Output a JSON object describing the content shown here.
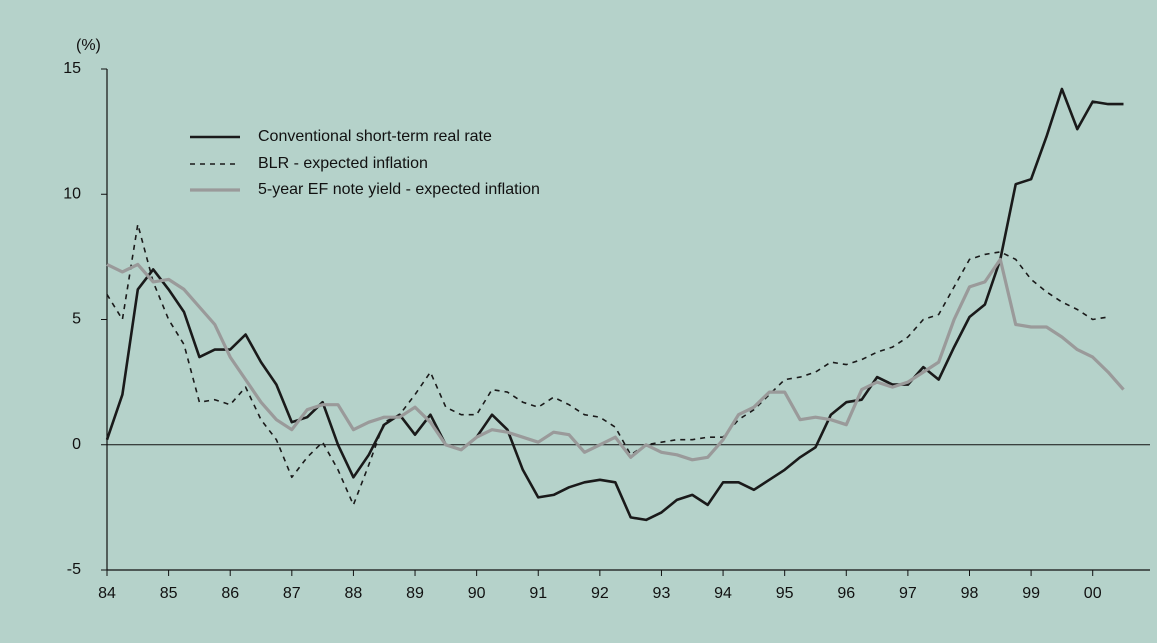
{
  "chart_data": {
    "type": "line",
    "y_label": "(%)",
    "x": [
      84,
      84.25,
      84.5,
      84.75,
      85,
      85.25,
      85.5,
      85.75,
      86,
      86.25,
      86.5,
      86.75,
      87,
      87.25,
      87.5,
      87.75,
      88,
      88.25,
      88.5,
      88.75,
      89,
      89.25,
      89.5,
      89.75,
      90,
      90.25,
      90.5,
      90.75,
      91,
      91.25,
      91.5,
      91.75,
      92,
      92.25,
      92.5,
      92.75,
      93,
      93.25,
      93.5,
      93.75,
      94,
      94.25,
      94.5,
      94.75,
      95,
      95.25,
      95.5,
      95.75,
      96,
      96.25,
      96.5,
      96.75,
      97,
      97.25,
      97.5,
      97.75,
      98,
      98.25,
      98.5,
      98.75,
      99,
      99.25,
      99.5,
      99.75,
      100,
      100.25,
      100.5
    ],
    "series": [
      {
        "name": "Conventional short-term real rate",
        "color": "#1a1a1a",
        "style": "solid",
        "values": [
          0.2,
          2.0,
          6.2,
          7.0,
          6.2,
          5.3,
          3.5,
          3.8,
          3.8,
          4.4,
          3.3,
          2.4,
          0.9,
          1.1,
          1.7,
          0.0,
          -1.3,
          -0.4,
          0.8,
          1.2,
          0.4,
          1.2,
          0.0,
          -0.2,
          0.3,
          1.2,
          0.6,
          -1.0,
          -2.1,
          -2.0,
          -1.7,
          -1.5,
          -1.4,
          -1.5,
          -2.9,
          -3.0,
          -2.7,
          -2.2,
          -2.0,
          -2.4,
          -1.5,
          -1.5,
          -1.8,
          -1.4,
          -1.0,
          -0.5,
          -0.1,
          1.2,
          1.7,
          1.8,
          2.7,
          2.4,
          2.4,
          3.1,
          2.6,
          3.9,
          5.1,
          5.6,
          7.4,
          10.4,
          10.6,
          12.3,
          14.2,
          12.6,
          13.7,
          13.6,
          13.6
        ]
      },
      {
        "name": "BLR - expected inflation",
        "color": "#1a1a1a",
        "style": "dashed",
        "values": [
          6.0,
          5.0,
          8.8,
          6.5,
          5.0,
          4.0,
          1.7,
          1.8,
          1.6,
          2.3,
          1.0,
          0.2,
          -1.3,
          -0.5,
          0.1,
          -1.0,
          -2.4,
          -0.8,
          0.9,
          1.2,
          2.0,
          2.9,
          1.5,
          1.2,
          1.2,
          2.2,
          2.1,
          1.7,
          1.5,
          1.9,
          1.6,
          1.2,
          1.1,
          0.7,
          -0.4,
          0.0,
          0.1,
          0.2,
          0.2,
          0.3,
          0.3,
          1.0,
          1.4,
          2.0,
          2.6,
          2.7,
          2.9,
          3.3,
          3.2,
          3.4,
          3.7,
          3.9,
          4.3,
          5.0,
          5.2,
          6.3,
          7.4,
          7.6,
          7.7,
          7.4,
          6.6,
          6.1,
          5.7,
          5.4,
          5.0,
          5.1,
          null
        ]
      },
      {
        "name": "5-year EF note yield - expected inflation",
        "color": "#9a9a9a",
        "style": "solid",
        "values": [
          7.2,
          6.9,
          7.2,
          6.5,
          6.6,
          6.2,
          5.5,
          4.8,
          3.5,
          2.6,
          1.7,
          1.0,
          0.6,
          1.4,
          1.6,
          1.6,
          0.6,
          0.9,
          1.1,
          1.1,
          1.5,
          0.9,
          0.0,
          -0.2,
          0.3,
          0.6,
          0.5,
          0.3,
          0.1,
          0.5,
          0.4,
          -0.3,
          0.0,
          0.3,
          -0.5,
          0.0,
          -0.3,
          -0.4,
          -0.6,
          -0.5,
          0.2,
          1.2,
          1.5,
          2.1,
          2.1,
          1.0,
          1.1,
          1.0,
          0.8,
          2.2,
          2.5,
          2.3,
          2.5,
          2.9,
          3.3,
          5.0,
          6.3,
          6.5,
          7.4,
          4.8,
          4.7,
          4.7,
          4.3,
          3.8,
          3.5,
          2.9,
          2.2
        ]
      }
    ],
    "xlim": [
      84,
      100.93
    ],
    "xticks": [
      84,
      85,
      86,
      87,
      88,
      89,
      90,
      91,
      92,
      93,
      94,
      95,
      96,
      97,
      98,
      99,
      {
        "value": 100,
        "label": "00"
      }
    ],
    "ylim": [
      -5,
      15
    ],
    "yticks": [
      -5,
      0,
      5,
      10,
      15
    ],
    "zero_line": true,
    "legend": "upper left"
  }
}
